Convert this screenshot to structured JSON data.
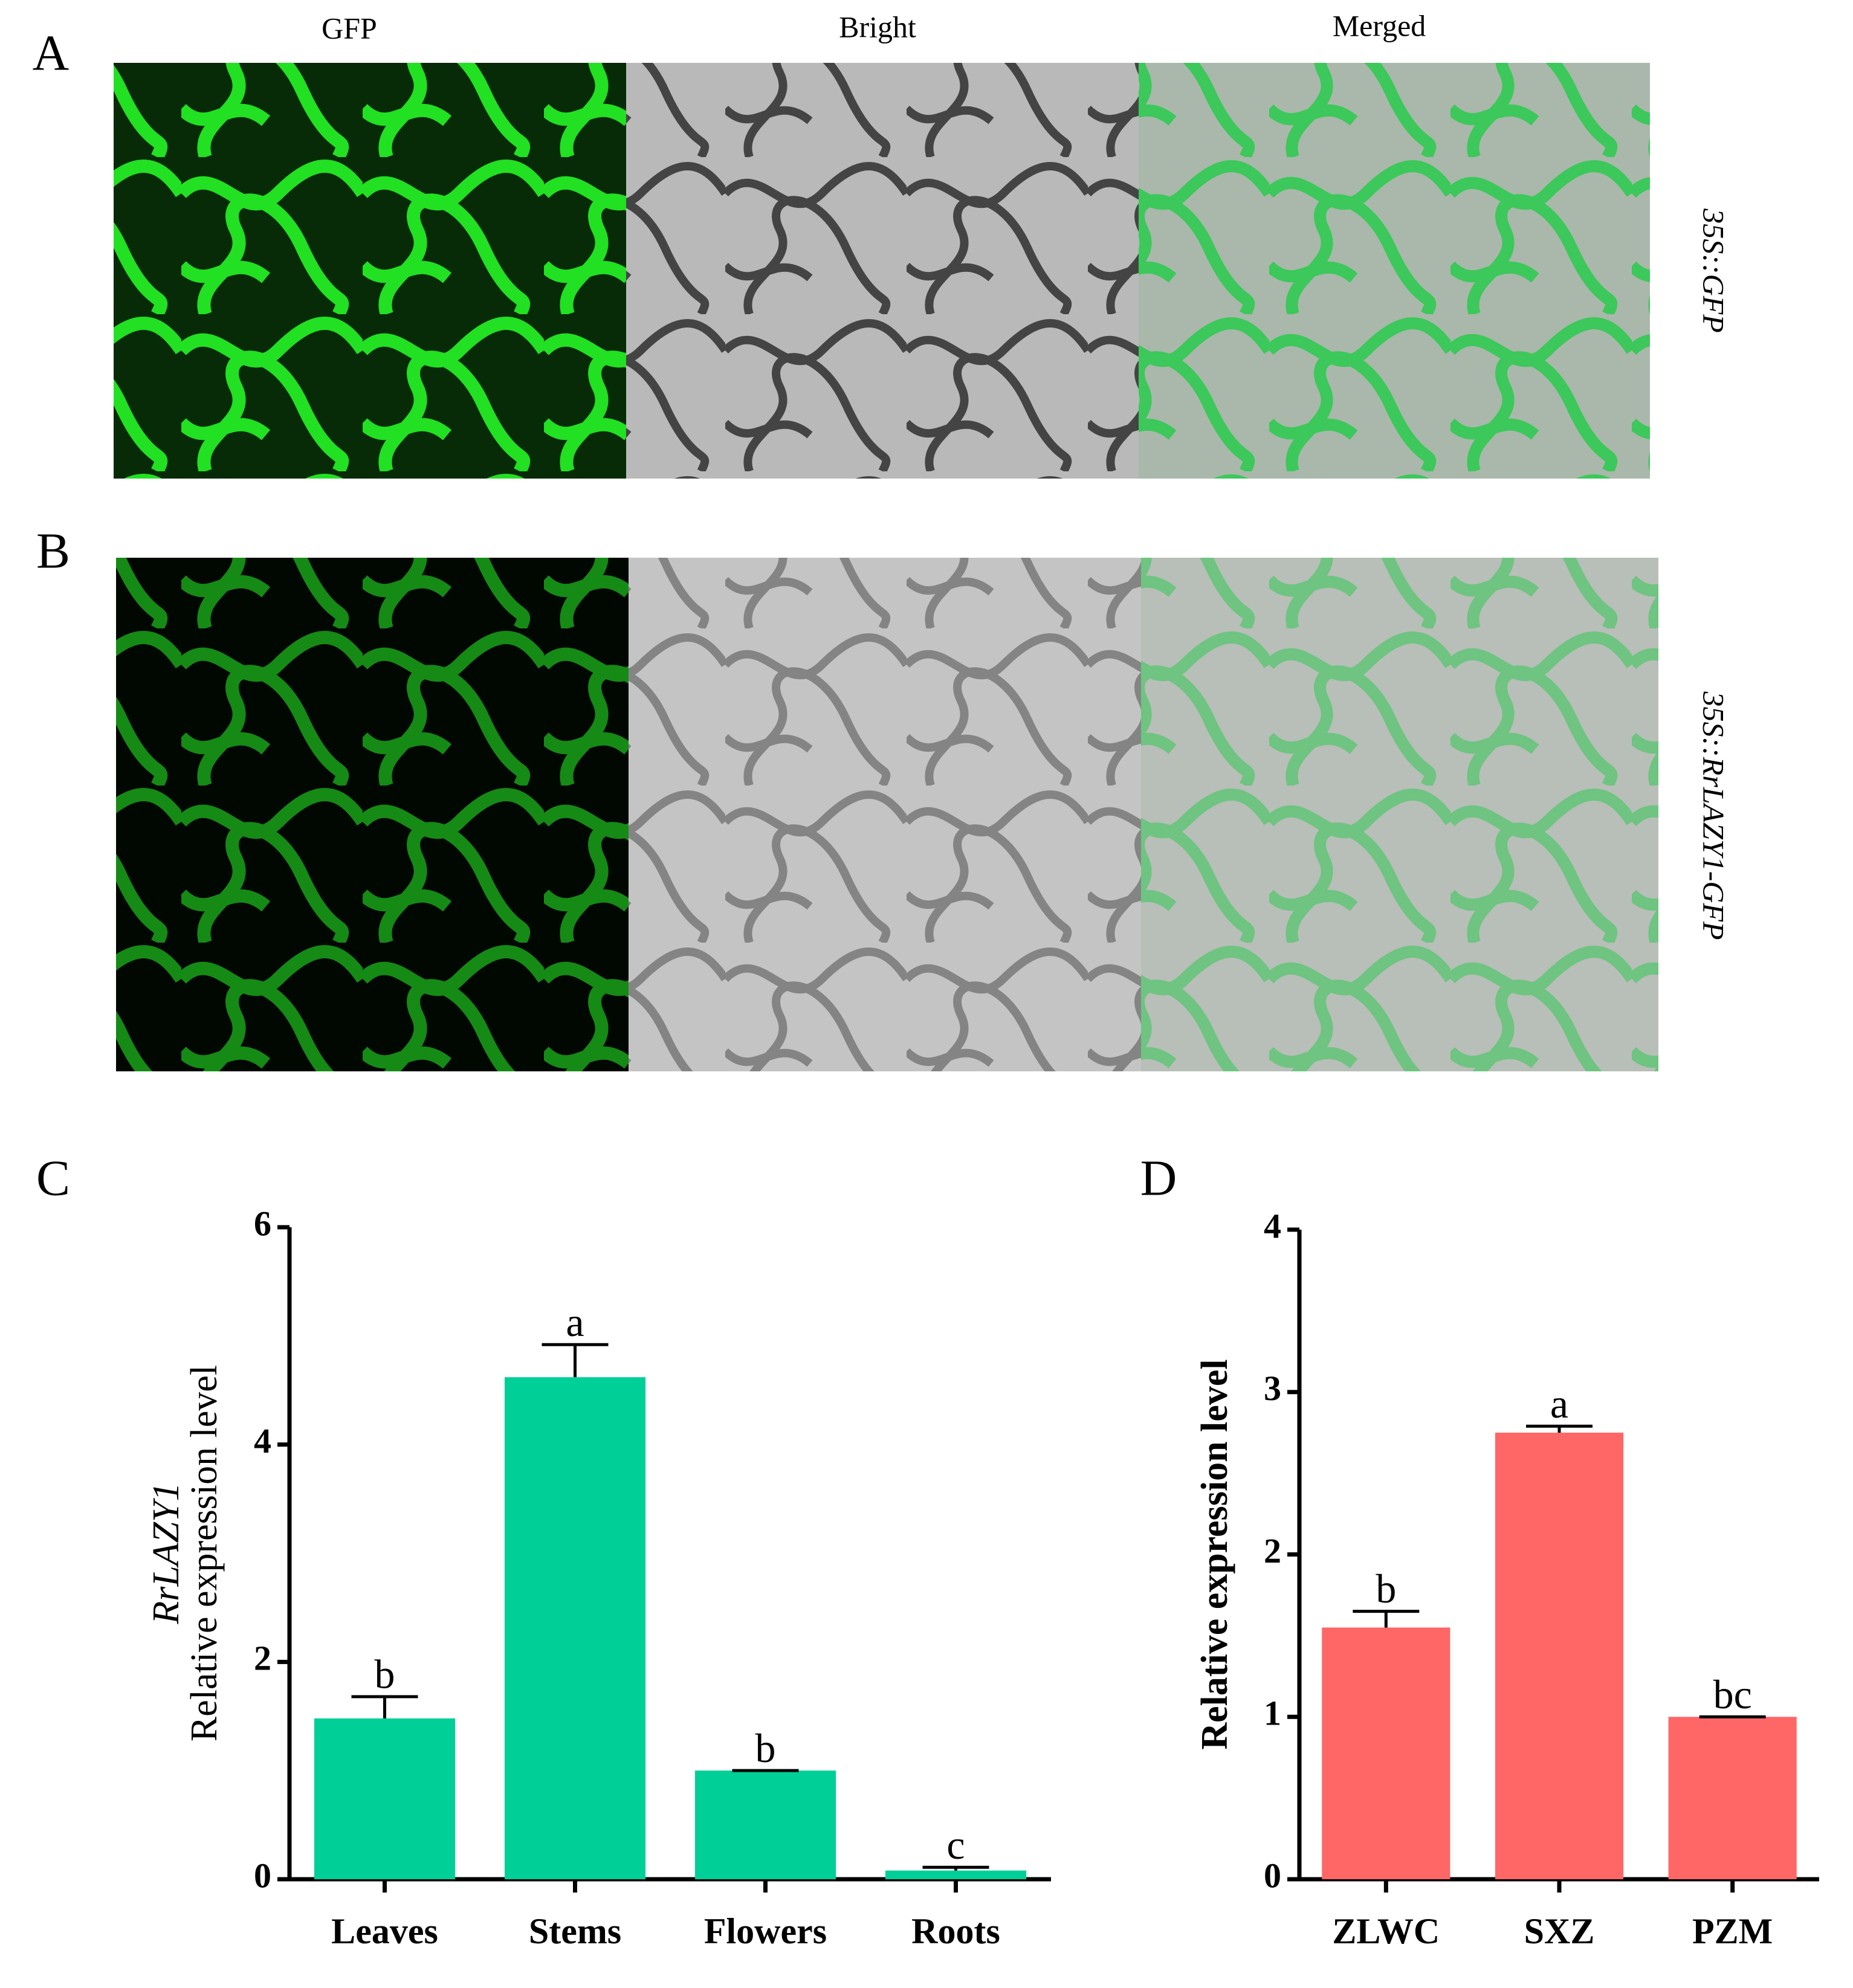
{
  "figure": {
    "panel_labels": [
      "A",
      "B",
      "C",
      "D"
    ],
    "columns": [
      "GFP",
      "Bright",
      "Merged"
    ],
    "rows": [
      "35S::GFP",
      "35S::RrLAZY1-GFP"
    ]
  },
  "chart_data": [
    {
      "type": "bar",
      "ylabel_gene": "RrLAZY1",
      "ylabel": "Relative expression level",
      "categories": [
        "Leaves",
        "Stems",
        "Flowers",
        "Roots"
      ],
      "values": [
        1.48,
        4.62,
        1.0,
        0.08
      ],
      "errors": [
        0.2,
        0.3,
        0,
        0.03
      ],
      "letters": [
        "b",
        "a",
        "b",
        "c"
      ],
      "color": "#00cf98",
      "ylim": [
        0,
        6
      ],
      "yticks": [
        0,
        2,
        4,
        6
      ]
    },
    {
      "type": "bar",
      "ylabel": "Relative expression level",
      "categories": [
        "ZLWC",
        "SXZ",
        "PZM"
      ],
      "values": [
        1.55,
        2.75,
        1.0
      ],
      "errors": [
        0.1,
        0.04,
        0
      ],
      "letters": [
        "b",
        "a",
        "bc"
      ],
      "color": "#ff6666",
      "ylim": [
        0,
        4
      ],
      "yticks": [
        0,
        1,
        2,
        3,
        4
      ]
    }
  ]
}
